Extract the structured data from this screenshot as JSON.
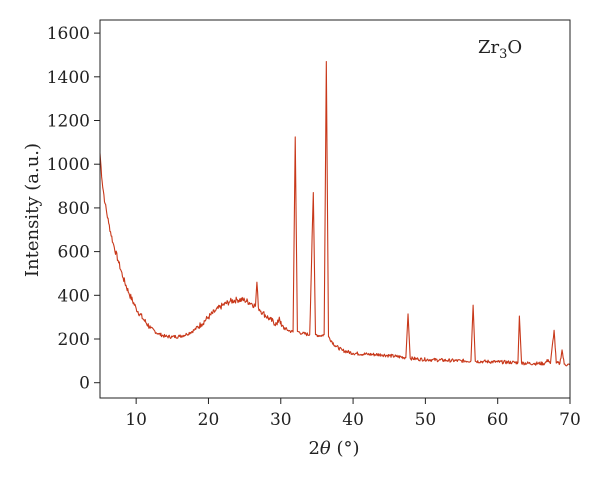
{
  "chart_data": {
    "type": "line",
    "title": "",
    "xlabel": "2θ (°)",
    "xlabel_parts": {
      "var": "θ",
      "prefix": "2",
      "suffix": " (°)"
    },
    "ylabel": "Intensity (a.u.)",
    "xlim": [
      5,
      70
    ],
    "ylim": [
      -70,
      1660
    ],
    "xticks": [
      10,
      20,
      30,
      40,
      50,
      60,
      70
    ],
    "yticks": [
      0,
      200,
      400,
      600,
      800,
      1000,
      1200,
      1400,
      1600
    ],
    "grid": false,
    "legend": {
      "placement": "top-right",
      "text": "Zr",
      "sub": "3",
      "tail": "O"
    },
    "series": [
      {
        "name": "Zr3O",
        "color": "#c8381a",
        "points": [
          [
            5.0,
            1050
          ],
          [
            5.3,
            920
          ],
          [
            5.7,
            820
          ],
          [
            6.2,
            730
          ],
          [
            6.8,
            640
          ],
          [
            7.5,
            560
          ],
          [
            8.2,
            480
          ],
          [
            9.0,
            410
          ],
          [
            10.0,
            340
          ],
          [
            11.0,
            290
          ],
          [
            12.0,
            250
          ],
          [
            13.0,
            225
          ],
          [
            14.0,
            212
          ],
          [
            15.0,
            210
          ],
          [
            16.0,
            212
          ],
          [
            17.0,
            222
          ],
          [
            18.0,
            240
          ],
          [
            19.0,
            268
          ],
          [
            20.0,
            300
          ],
          [
            21.0,
            330
          ],
          [
            22.0,
            355
          ],
          [
            23.0,
            372
          ],
          [
            24.0,
            380
          ],
          [
            25.0,
            378
          ],
          [
            26.0,
            362
          ],
          [
            26.5,
            350
          ],
          [
            26.7,
            460
          ],
          [
            26.9,
            345
          ],
          [
            27.5,
            320
          ],
          [
            28.5,
            290
          ],
          [
            29.5,
            265
          ],
          [
            29.8,
            300
          ],
          [
            30.1,
            258
          ],
          [
            31.0,
            240
          ],
          [
            31.7,
            232
          ],
          [
            32.0,
            1125
          ],
          [
            32.3,
            235
          ],
          [
            33.0,
            225
          ],
          [
            34.0,
            220
          ],
          [
            34.5,
            870
          ],
          [
            34.8,
            220
          ],
          [
            35.5,
            215
          ],
          [
            36.0,
            220
          ],
          [
            36.3,
            1470
          ],
          [
            36.6,
            210
          ],
          [
            37.5,
            170
          ],
          [
            38.5,
            148
          ],
          [
            40.0,
            135
          ],
          [
            42.0,
            130
          ],
          [
            44.0,
            128
          ],
          [
            46.0,
            120
          ],
          [
            47.3,
            115
          ],
          [
            47.6,
            315
          ],
          [
            47.9,
            112
          ],
          [
            49.0,
            108
          ],
          [
            51.0,
            105
          ],
          [
            53.0,
            102
          ],
          [
            55.0,
            100
          ],
          [
            56.3,
            100
          ],
          [
            56.6,
            355
          ],
          [
            56.9,
            98
          ],
          [
            58.0,
            97
          ],
          [
            60.0,
            95
          ],
          [
            62.0,
            93
          ],
          [
            62.8,
            92
          ],
          [
            63.0,
            305
          ],
          [
            63.3,
            90
          ],
          [
            65.0,
            88
          ],
          [
            66.5,
            88
          ],
          [
            67.0,
            105
          ],
          [
            67.3,
            88
          ],
          [
            67.8,
            240
          ],
          [
            68.1,
            90
          ],
          [
            68.6,
            88
          ],
          [
            68.9,
            150
          ],
          [
            69.2,
            85
          ],
          [
            70.0,
            80
          ]
        ]
      }
    ]
  }
}
